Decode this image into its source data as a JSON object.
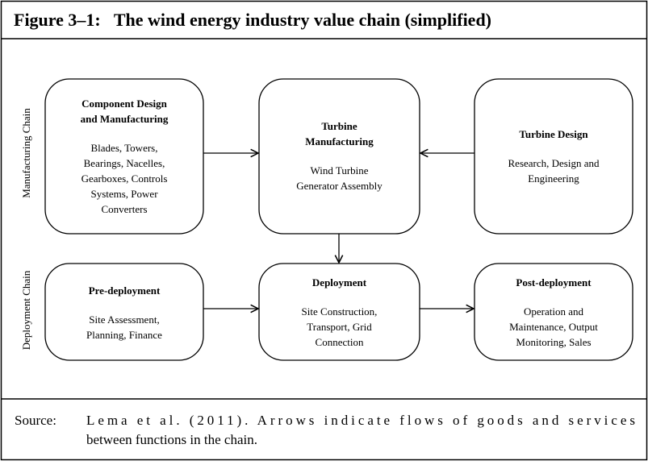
{
  "header": {
    "title": "Figure 3–1:   The wind energy industry value chain (simplified)"
  },
  "side_labels": [
    "Manufacturing Chain",
    "Deployment Chain"
  ],
  "nodes": [
    {
      "title": [
        "Component Design",
        "and Manufacturing"
      ],
      "body": [
        "Blades, Towers,",
        "Bearings, Nacelles,",
        "Gearboxes, Controls",
        "Systems, Power",
        "Converters"
      ]
    },
    {
      "title": [
        "Turbine",
        "Manufacturing"
      ],
      "body": [
        "Wind Turbine",
        "Generator Assembly"
      ]
    },
    {
      "title": [
        "Turbine Design"
      ],
      "body": [
        "Research, Design and",
        "Engineering"
      ]
    },
    {
      "title": [
        "Pre-deployment"
      ],
      "body": [
        "Site Assessment,",
        "Planning, Finance"
      ]
    },
    {
      "title": [
        "Deployment"
      ],
      "body": [
        "Site Construction,",
        "Transport, Grid",
        "Connection"
      ]
    },
    {
      "title": [
        "Post-deployment"
      ],
      "body": [
        "Operation and",
        "Maintenance, Output",
        "Monitoring, Sales"
      ]
    }
  ],
  "source": {
    "label": "Source:",
    "lines": [
      "Lema et al. (2011). Arrows indicate flows of goods and services",
      "between functions in the chain."
    ]
  }
}
